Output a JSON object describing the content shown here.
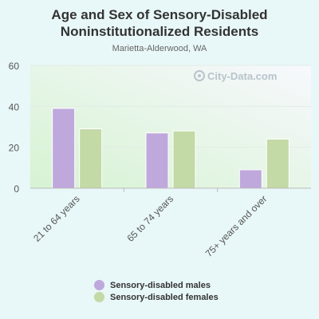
{
  "chart_data": {
    "type": "bar",
    "title": "Age and Sex of Sensory-Disabled Noninstitutionalized Residents",
    "subtitle": "Marietta-Alderwood, WA",
    "categories": [
      "21 to 64 years",
      "65 to 74 years",
      "75+ years and over"
    ],
    "series": [
      {
        "name": "Sensory-disabled males",
        "color": "#bfa8dc",
        "values": [
          39,
          27,
          9
        ]
      },
      {
        "name": "Sensory-disabled females",
        "color": "#c3d9a6",
        "values": [
          29,
          28,
          24
        ]
      }
    ],
    "ylim": [
      0,
      60
    ],
    "yticks": [
      0,
      20,
      40,
      60
    ],
    "grid": true,
    "legend": "bottom",
    "watermark": "City-Data.com"
  }
}
